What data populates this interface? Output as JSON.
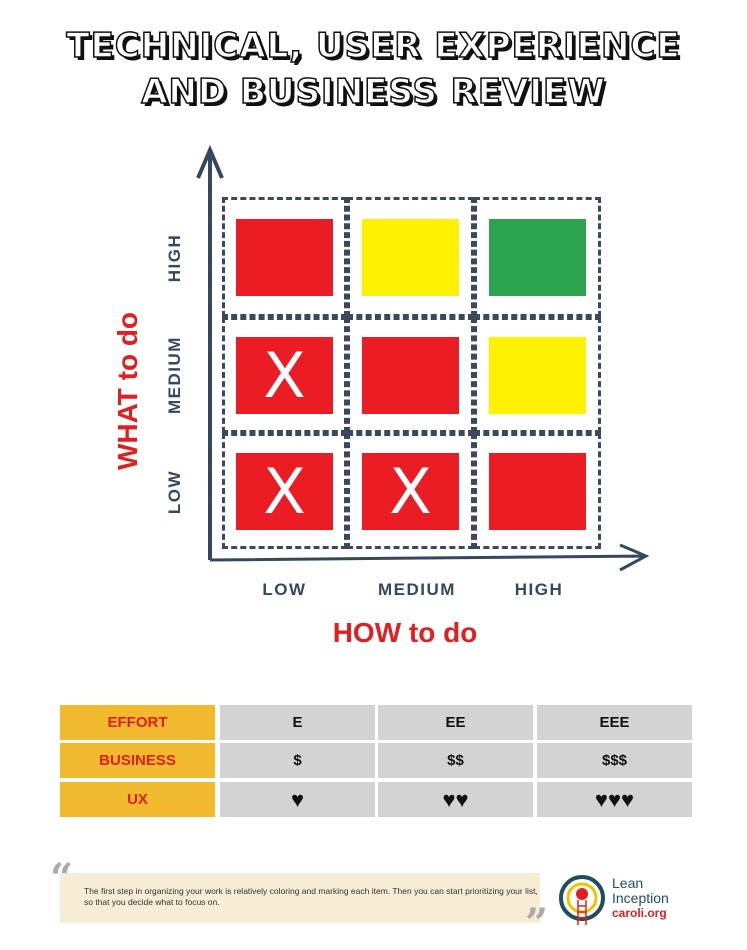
{
  "title": {
    "line1": "TECHNICAL, USER EXPERIENCE",
    "line2": "AND BUSINESS REVIEW"
  },
  "matrix": {
    "y_axis_title": "WHAT to do",
    "x_axis_title": "HOW to do",
    "y_levels": [
      "HIGH",
      "MEDIUM",
      "LOW"
    ],
    "x_levels": [
      "LOW",
      "MEDIUM",
      "HIGH"
    ],
    "colors": {
      "red": "#ec1c24",
      "yellow": "#fff200",
      "green": "#2ca44f"
    },
    "cells": [
      [
        {
          "color": "red",
          "mark": ""
        },
        {
          "color": "yellow",
          "mark": ""
        },
        {
          "color": "green",
          "mark": ""
        }
      ],
      [
        {
          "color": "red",
          "mark": "X"
        },
        {
          "color": "red",
          "mark": ""
        },
        {
          "color": "yellow",
          "mark": ""
        }
      ],
      [
        {
          "color": "red",
          "mark": "X"
        },
        {
          "color": "red",
          "mark": "X"
        },
        {
          "color": "red",
          "mark": ""
        }
      ]
    ]
  },
  "table": {
    "rows": [
      {
        "header": "EFFORT",
        "values": [
          "E",
          "EE",
          "EEE"
        ]
      },
      {
        "header": "BUSINESS",
        "values": [
          "$",
          "$$",
          "$$$"
        ]
      },
      {
        "header": "UX",
        "values": [
          "♥",
          "♥♥",
          "♥♥♥"
        ]
      }
    ]
  },
  "quote": {
    "text": "The first step in organizing your work is relatively coloring and marking each item. Then you can start prioritizing your list, so that you decide what to focus on.",
    "open": "“",
    "close": "”"
  },
  "logo": {
    "line1": "Lean",
    "line2": "Inception",
    "line3": "caroli.org"
  }
}
